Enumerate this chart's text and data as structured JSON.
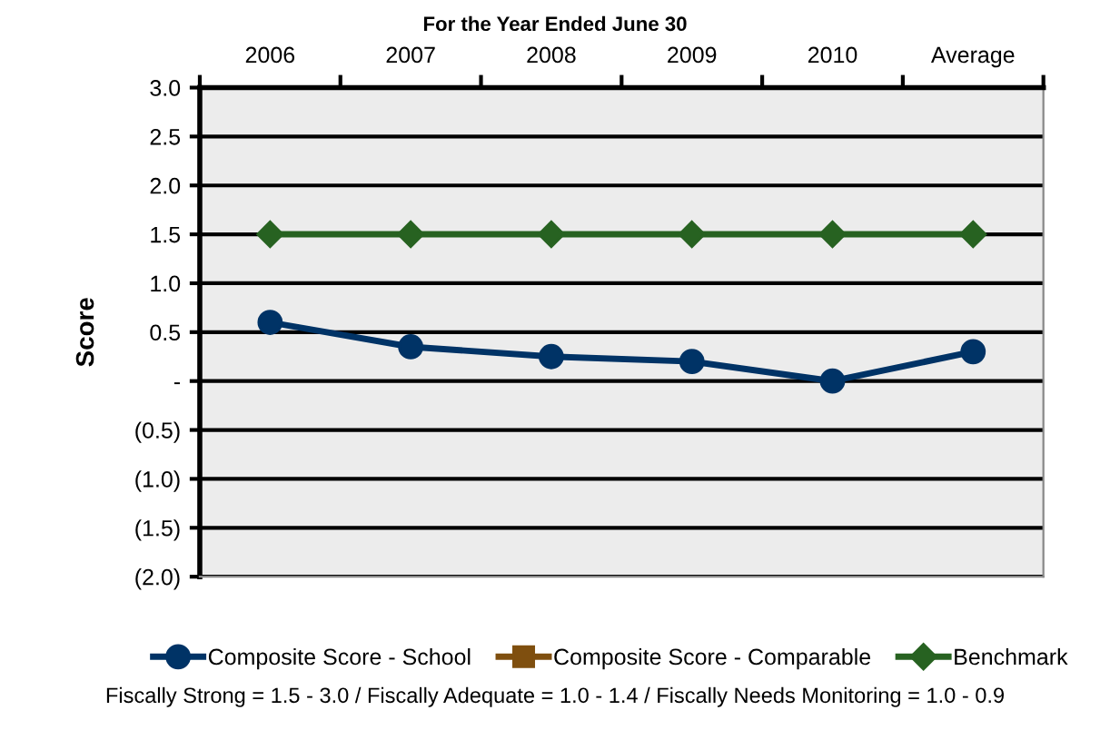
{
  "chart_data": {
    "type": "line",
    "title": "For the Year Ended June 30",
    "ylabel": "Score",
    "categories": [
      "2006",
      "2007",
      "2008",
      "2009",
      "2010",
      "Average"
    ],
    "series": [
      {
        "name": "Composite Score - School",
        "color": "#003366",
        "marker": "circle",
        "values": [
          0.6,
          0.35,
          0.25,
          0.2,
          0.0,
          0.3
        ]
      },
      {
        "name": "Composite Score - Comparable",
        "color": "#7f4f0f",
        "marker": "square",
        "values": [
          null,
          null,
          null,
          null,
          null,
          null
        ]
      },
      {
        "name": "Benchmark",
        "color": "#276221",
        "marker": "diamond",
        "values": [
          1.5,
          1.5,
          1.5,
          1.5,
          1.5,
          1.5
        ]
      }
    ],
    "ylim": [
      -2.0,
      3.0
    ],
    "yticks": [
      {
        "value": -2.0,
        "label": "(2.0)"
      },
      {
        "value": -1.5,
        "label": "(1.5)"
      },
      {
        "value": -1.0,
        "label": "(1.0)"
      },
      {
        "value": -0.5,
        "label": "(0.5)"
      },
      {
        "value": 0,
        "label": "-"
      },
      0.5,
      {
        "value": 1,
        "label": "1.0"
      },
      1.5,
      {
        "value": 2,
        "label": "2.0"
      },
      2.5,
      {
        "value": 3,
        "label": "3.0"
      }
    ],
    "grid": "y",
    "legend": "bottom",
    "annotations": [
      "Fiscally Strong = 1.5 - 3.0 / Fiscally Adequate = 1.0 - 1.4 / Fiscally Needs Monitoring = 1.0 - 0.9"
    ]
  }
}
